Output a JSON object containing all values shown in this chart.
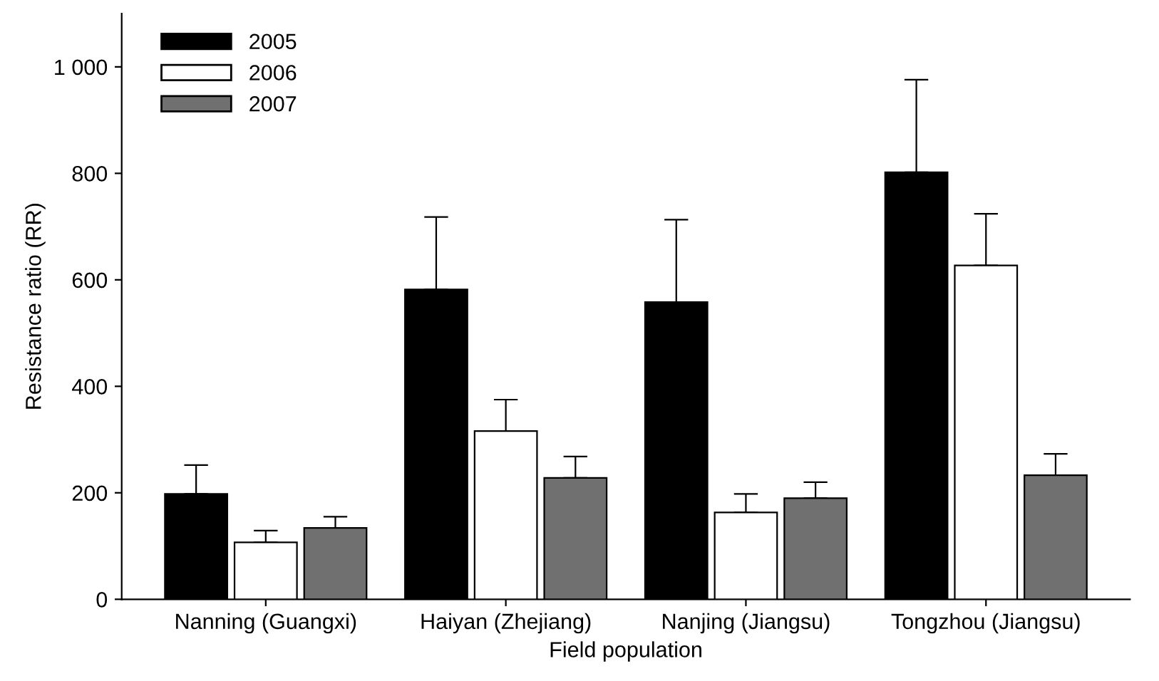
{
  "chart_data": {
    "type": "bar",
    "xlabel": "Field population",
    "ylabel": "Resistance ratio (RR)",
    "categories": [
      "Nanning (Guangxi)",
      "Haiyan (Zhejiang)",
      "Nanjing (Jiangsu)",
      "Tongzhou (Jiangsu)"
    ],
    "series": [
      {
        "name": "2005",
        "color": "#000000",
        "values": [
          198,
          582,
          558,
          802
        ],
        "errors": [
          [
            198,
            252
          ],
          [
            582,
            718
          ],
          [
            558,
            713
          ],
          [
            802,
            976
          ]
        ]
      },
      {
        "name": "2006",
        "color": "#ffffff",
        "values": [
          107,
          316,
          163,
          627
        ],
        "errors": [
          [
            107,
            129
          ],
          [
            316,
            375
          ],
          [
            163,
            198
          ],
          [
            627,
            724
          ]
        ]
      },
      {
        "name": "2007",
        "color": "#707070",
        "values": [
          134,
          228,
          190,
          233
        ],
        "errors": [
          [
            134,
            155
          ],
          [
            228,
            268
          ],
          [
            190,
            220
          ],
          [
            233,
            273
          ]
        ]
      }
    ],
    "ylim": [
      0,
      1100
    ],
    "yticks": [
      0,
      200,
      400,
      600,
      800,
      {
        "value": 1000,
        "label": "1 000"
      }
    ],
    "grid": false,
    "legend": "top left"
  }
}
